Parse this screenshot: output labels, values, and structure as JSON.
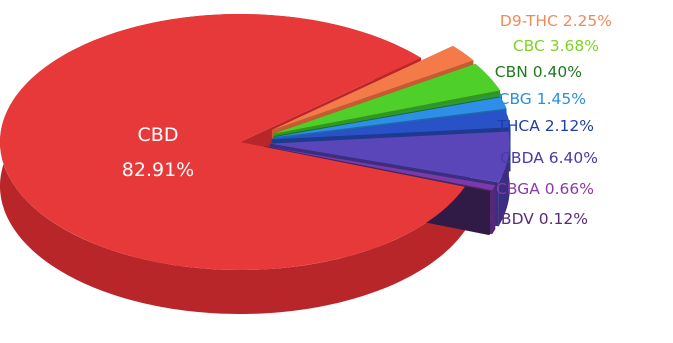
{
  "chart_data": {
    "type": "pie",
    "style": "3d-exploded",
    "slices": [
      {
        "label": "CBD",
        "value": 82.91,
        "display": "82.91%",
        "color": "#e8393a",
        "side": "#b8262a",
        "label_color": "#ffffff"
      },
      {
        "label": "D9-THC",
        "value": 2.25,
        "display": "2.25%",
        "color": "#f47a4a",
        "side": "#c65a30",
        "label_color": "#f08a5c"
      },
      {
        "label": "CBC",
        "value": 3.68,
        "display": "3.68%",
        "color": "#4fcf2a",
        "side": "#35971a",
        "label_color": "#7ed321"
      },
      {
        "label": "CBN",
        "value": 0.4,
        "display": "0.40%",
        "color": "#2a9a3a",
        "side": "#1c6e28",
        "label_color": "#1f7a1f"
      },
      {
        "label": "CBG",
        "value": 1.45,
        "display": "1.45%",
        "color": "#2f8fe8",
        "side": "#1f68ad",
        "label_color": "#2a8fe0"
      },
      {
        "label": "THCA",
        "value": 2.12,
        "display": "2.12%",
        "color": "#2a52c8",
        "side": "#1d3a8f",
        "label_color": "#1f3fa8"
      },
      {
        "label": "CBDA",
        "value": 6.4,
        "display": "6.40%",
        "color": "#5a46b8",
        "side": "#3b2d80",
        "label_color": "#4a3aa8"
      },
      {
        "label": "CBGA",
        "value": 0.66,
        "display": "0.66%",
        "color": "#7a3aa8",
        "side": "#552877",
        "label_color": "#8a3aa8"
      },
      {
        "label": "CBDV",
        "value": 0.12,
        "display": "0.12%",
        "color": "#4a2a6a",
        "side": "#301b47",
        "label_color": "#5a2a7a"
      }
    ]
  }
}
